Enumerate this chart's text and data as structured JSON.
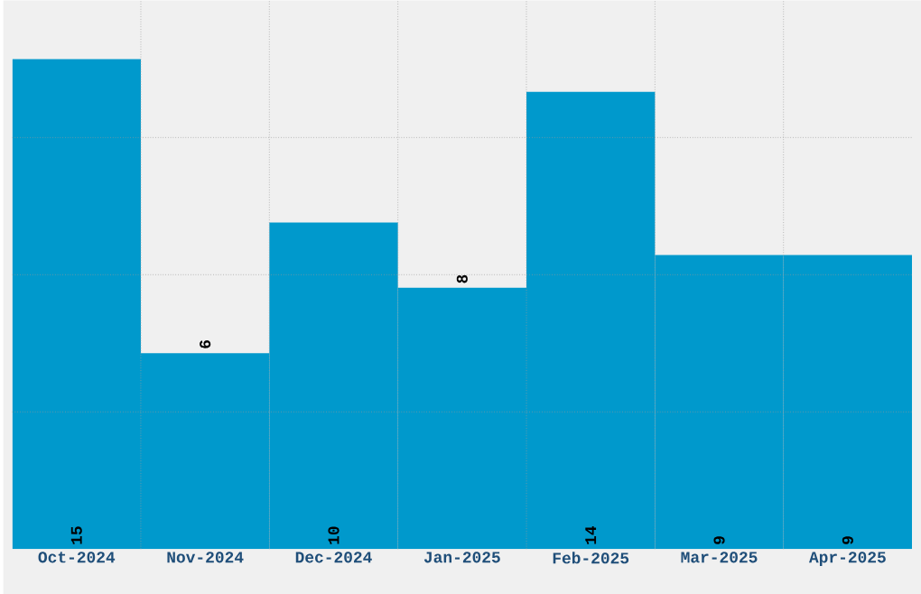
{
  "chart_data": {
    "type": "bar",
    "categories": [
      "Oct-2024",
      "Nov-2024",
      "Dec-2024",
      "Jan-2025",
      "Feb-2025",
      "Mar-2025",
      "Apr-2025"
    ],
    "values": [
      15,
      6,
      10,
      8,
      14,
      9,
      9
    ],
    "color": "#0099cc",
    "data_labels": true,
    "grid": true,
    "ylim": [
      0,
      16.8
    ],
    "yticks": [
      {
        "value": 4.2,
        "label": null
      },
      {
        "value": 8.4,
        "label": null
      },
      {
        "value": 12.6,
        "label": null
      }
    ],
    "tick_labels": "x"
  }
}
